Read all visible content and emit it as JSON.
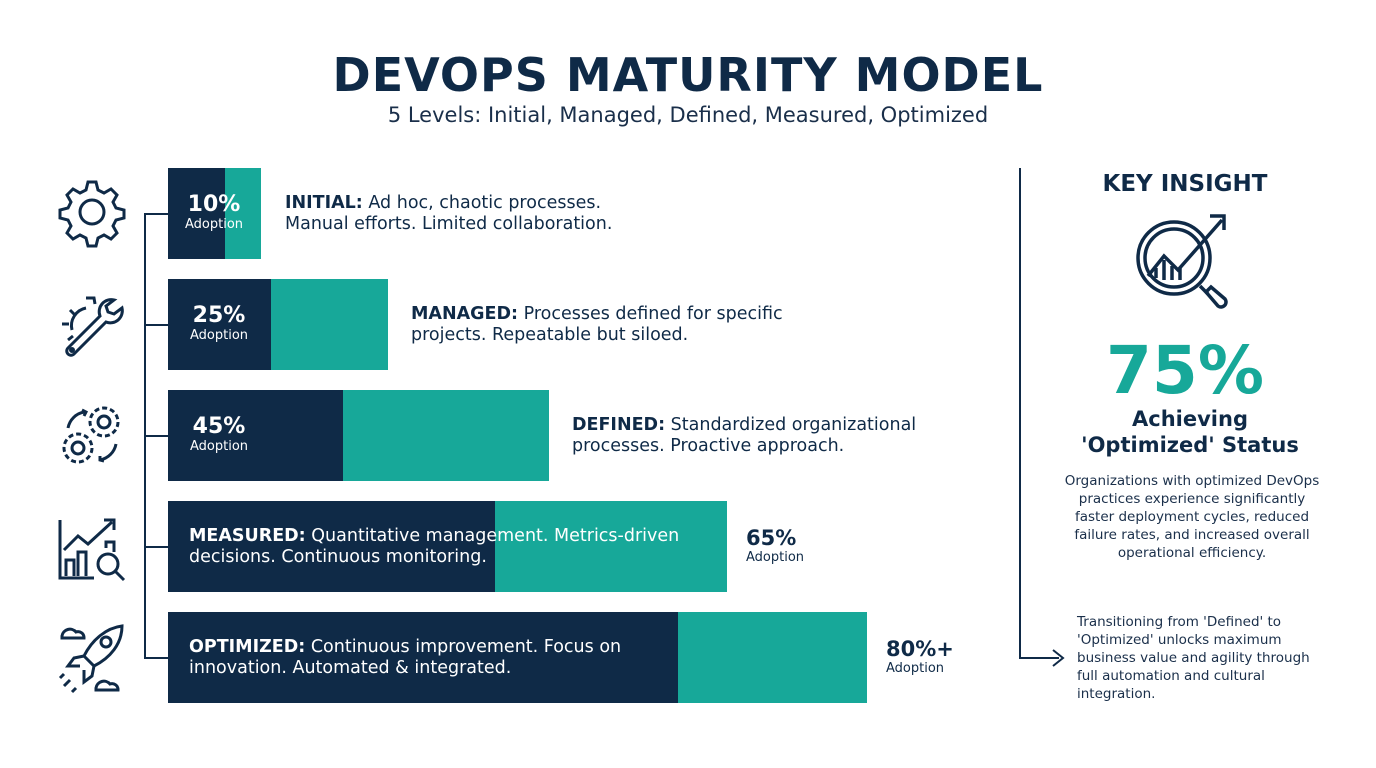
{
  "title": "DEVOPS MATURITY MODEL",
  "subtitle": "5 Levels: Initial, Managed, Defined, Measured, Optimized",
  "colors": {
    "dark": "#0f2a47",
    "teal": "#17a899"
  },
  "levels": [
    {
      "icon": "gear-icon",
      "percent": "10%",
      "percent_value": 10,
      "adoption": "Adoption",
      "name": "INITIAL:",
      "text": "Ad hoc, chaotic processes. Manual efforts. Limited collaboration."
    },
    {
      "icon": "gear-wrench-icon",
      "percent": "25%",
      "percent_value": 25,
      "adoption": "Adoption",
      "name": "MANAGED:",
      "text": "Processes defined for specific projects. Repeatable but siloed."
    },
    {
      "icon": "gears-cycle-icon",
      "percent": "45%",
      "percent_value": 45,
      "adoption": "Adoption",
      "name": "DEFINED:",
      "text": "Standardized organizational processes. Proactive approach."
    },
    {
      "icon": "chart-magnifier-icon",
      "percent": "65%",
      "percent_value": 65,
      "adoption": "Adoption",
      "name": "MEASURED:",
      "text": "Quantitative management. Metrics-driven decisions. Continuous monitoring."
    },
    {
      "icon": "rocket-icon",
      "percent": "80%+",
      "percent_value": 80,
      "adoption": "Adoption",
      "name": "OPTIMIZED:",
      "text": "Continuous improvement. Focus on innovation. Automated & integrated."
    }
  ],
  "insight": {
    "heading": "KEY INSIGHT",
    "icon": "magnifier-growth-icon",
    "stat": "75%",
    "stat_label": "Achieving 'Optimized' Status",
    "body": "Organizations with optimized DevOps practices experience significantly faster deployment cycles, reduced failure rates, and increased overall operational efficiency.",
    "footer": "Transitioning from 'Defined' to 'Optimized' unlocks maximum business value and agility through full automation and cultural integration."
  }
}
